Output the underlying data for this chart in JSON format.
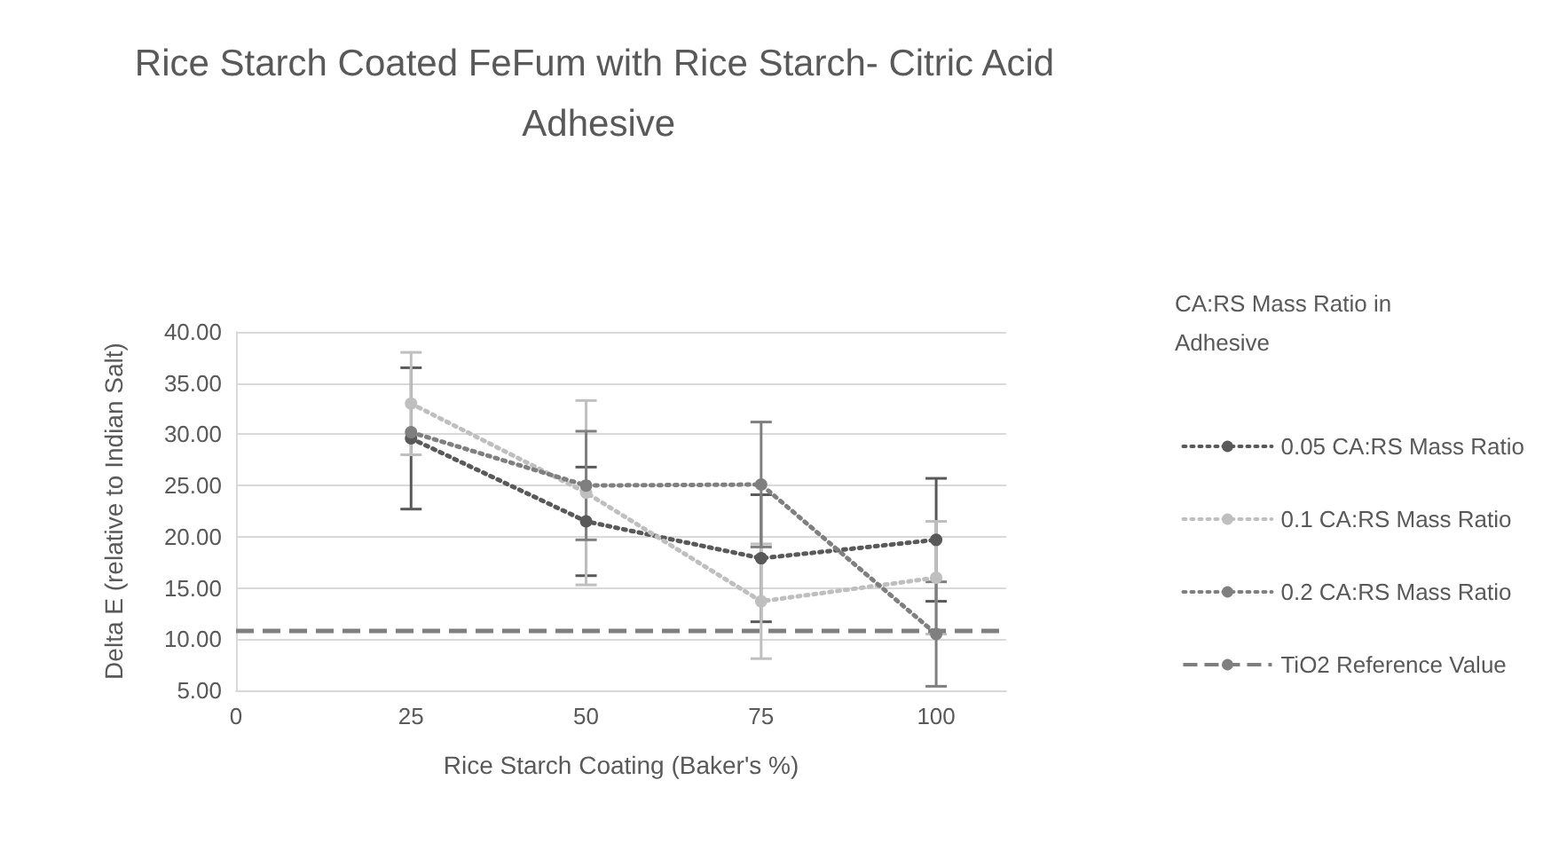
{
  "chart_data": {
    "type": "line",
    "title": "Rice Starch Coated FeFum with Rice Starch- Citric Acid Adhesive",
    "xlabel": "Rice Starch Coating (Baker's %)",
    "ylabel": "Delta E (relative to Indian Salt)",
    "legend_title": "CA:RS Mass Ratio in Adhesive",
    "x": [
      25,
      50,
      75,
      100
    ],
    "series": [
      {
        "name": "0.05 CA:RS Mass Ratio",
        "color": "#595959",
        "values": [
          29.6,
          21.5,
          17.9,
          19.7
        ],
        "errors": [
          6.9,
          5.3,
          6.2,
          6.0
        ]
      },
      {
        "name": "0.1 CA:RS Mass Ratio",
        "color": "#bfbfbf",
        "values": [
          33.0,
          24.3,
          13.7,
          16.0
        ],
        "errors": [
          5.0,
          9.0,
          5.6,
          5.5
        ]
      },
      {
        "name": "0.2 CA:RS Mass Ratio",
        "color": "#7f7f7f",
        "values": [
          30.2,
          25.0,
          25.1,
          10.5
        ],
        "errors": [
          null,
          5.3,
          6.1,
          5.1
        ]
      }
    ],
    "ref_lines": [
      {
        "axis": "y",
        "value": 10.8,
        "label": "TiO2 Reference Value",
        "color": "#7f7f7f",
        "line_style": "dashed"
      }
    ],
    "xlim": [
      0,
      110
    ],
    "xticks": [
      0,
      25,
      50,
      75,
      100
    ],
    "ylim": [
      5,
      40
    ],
    "yticks": [
      {
        "value": 5,
        "label": "5.00"
      },
      {
        "value": 10,
        "label": "10.00"
      },
      {
        "value": 15,
        "label": "15.00"
      },
      {
        "value": 20,
        "label": "20.00"
      },
      {
        "value": 25,
        "label": "25.00"
      },
      {
        "value": 30,
        "label": "30.00"
      },
      {
        "value": 35,
        "label": "35.00"
      },
      {
        "value": 40,
        "label": "40.00"
      }
    ],
    "grid": "y",
    "legend": "right",
    "marker": "circle",
    "line_style": "dotted"
  }
}
